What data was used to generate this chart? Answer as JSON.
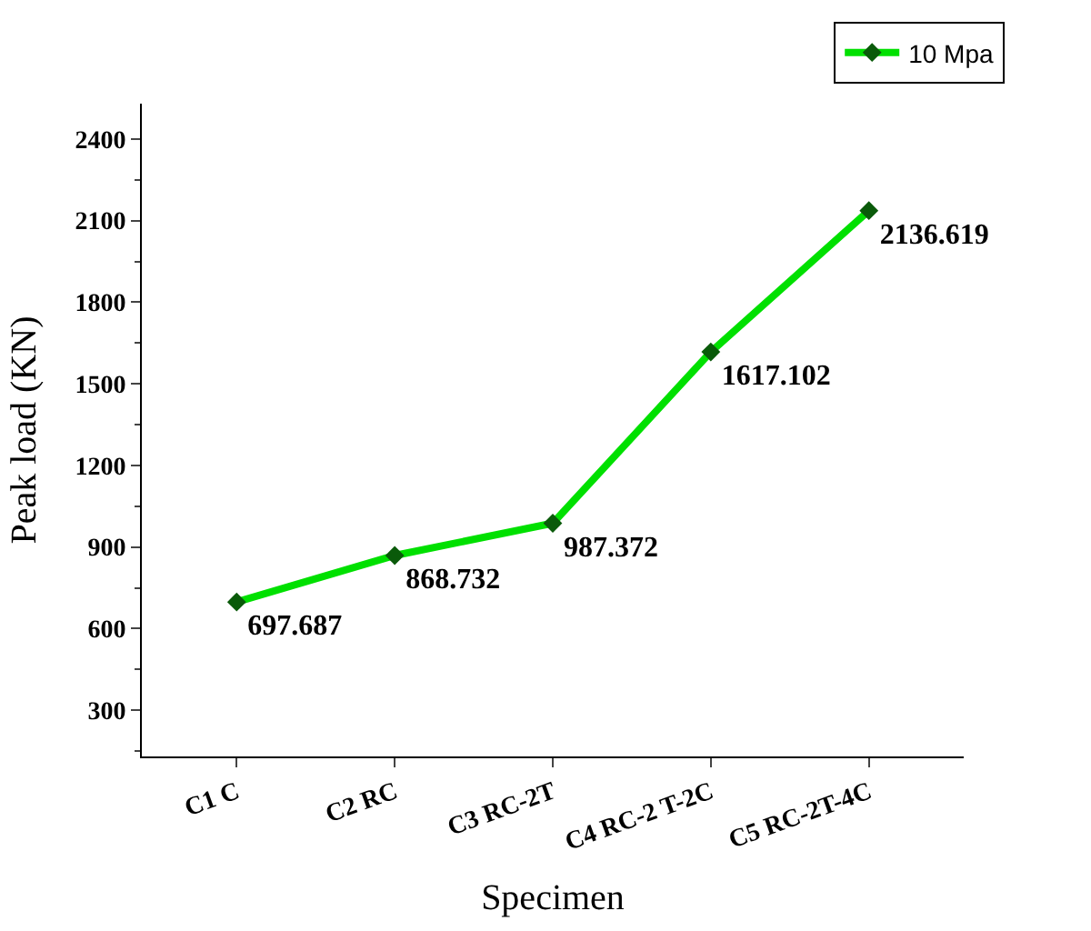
{
  "chart_data": {
    "type": "line",
    "xlabel": "Specimen",
    "ylabel": "Peak load (KN)",
    "categories": [
      "C1 C",
      "C2 RC",
      "C3 RC-2T",
      "C4 RC-2 T-2C",
      "C5 RC-2T-4C"
    ],
    "series": [
      {
        "name": "10 Mpa",
        "color": "#00e000",
        "values": [
          697.687,
          868.732,
          987.372,
          1617.102,
          2136.619
        ]
      }
    ],
    "ylim": [
      130,
      2530
    ],
    "yticks": [
      300,
      600,
      900,
      1200,
      1500,
      1800,
      2100,
      2400
    ],
    "legend": "top right",
    "marker": "diamond",
    "line_style": "solid",
    "data_labels": true
  }
}
